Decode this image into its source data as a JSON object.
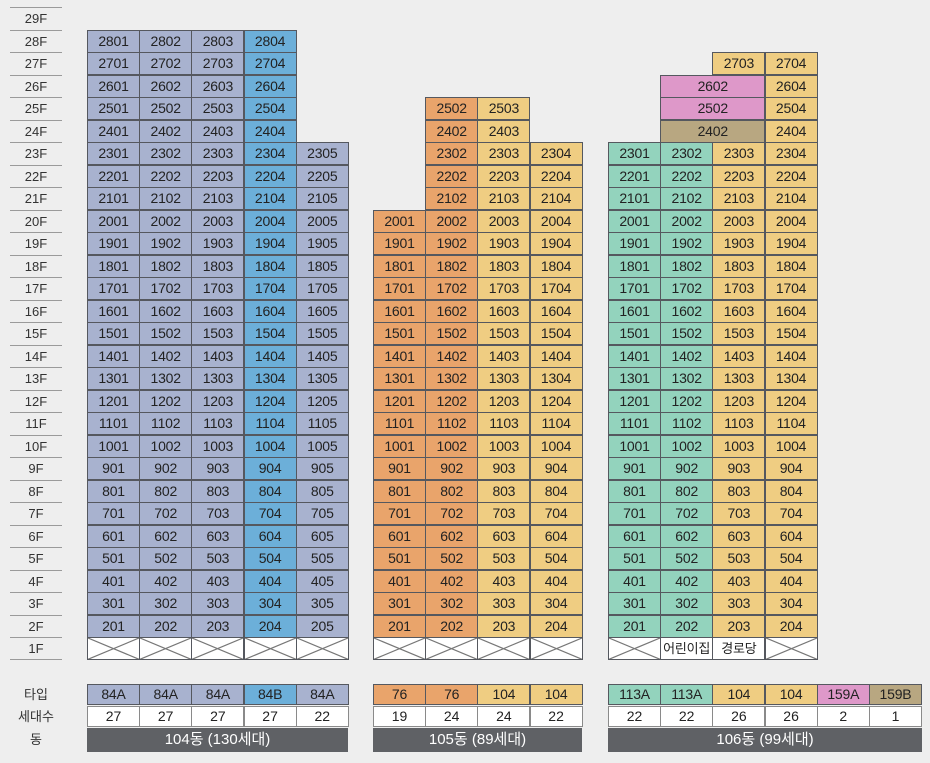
{
  "floors": [
    "29F",
    "28F",
    "27F",
    "26F",
    "25F",
    "24F",
    "23F",
    "22F",
    "21F",
    "20F",
    "19F",
    "18F",
    "17F",
    "16F",
    "15F",
    "14F",
    "13F",
    "12F",
    "11F",
    "10F",
    "9F",
    "8F",
    "7F",
    "6F",
    "5F",
    "4F",
    "3F",
    "2F",
    "1F"
  ],
  "row_labels": {
    "type": "타입",
    "households": "세대수",
    "building": "동"
  },
  "buildings": [
    {
      "name": "104동 (130세대)",
      "columns": [
        {
          "line": "01",
          "top": 28,
          "type": "84A",
          "households": "27",
          "color": "#a8b2cf",
          "first_floor": "x"
        },
        {
          "line": "02",
          "top": 28,
          "type": "84A",
          "households": "27",
          "color": "#a8b2cf",
          "first_floor": "x"
        },
        {
          "line": "03",
          "top": 28,
          "type": "84A",
          "households": "27",
          "color": "#a8b2cf",
          "first_floor": "x"
        },
        {
          "line": "04",
          "top": 28,
          "type": "84B",
          "households": "27",
          "color": "#6cafd9",
          "first_floor": "x"
        },
        {
          "line": "05",
          "top": 23,
          "type": "84A",
          "households": "22",
          "color": "#a8b2cf",
          "first_floor": "x"
        }
      ]
    },
    {
      "name": "105동 (89세대)",
      "columns": [
        {
          "line": "01",
          "top": 20,
          "type": "76",
          "households": "19",
          "color": "#e9a46b",
          "first_floor": "x"
        },
        {
          "line": "02",
          "top": 25,
          "type": "76",
          "households": "24",
          "color": "#e9a46b",
          "first_floor": "x"
        },
        {
          "line": "03",
          "top": 25,
          "type": "104",
          "households": "24",
          "color": "#efcd82",
          "first_floor": "x"
        },
        {
          "line": "04",
          "top": 23,
          "type": "104",
          "households": "22",
          "color": "#efcd82",
          "first_floor": "x"
        }
      ]
    },
    {
      "name": "106동 (99세대)",
      "columns": [
        {
          "line": "01",
          "top": 23,
          "type": "113A",
          "households": "22",
          "color": "#93d3bd",
          "first_floor": "x"
        },
        {
          "line": "02",
          "top": 23,
          "type": "113A",
          "households": "22",
          "color": "#93d3bd",
          "first_floor": "어린이집"
        },
        {
          "line": "03",
          "top": 27,
          "type": "104",
          "households": "26",
          "color": "#efcd82",
          "first_floor": "경로당"
        },
        {
          "line": "04",
          "top": 27,
          "type": "104",
          "households": "26",
          "color": "#efcd82",
          "first_floor": "x"
        }
      ],
      "extra_units": [
        {
          "label": "2602",
          "column": 2,
          "floor": 26,
          "color": "#de98c9"
        },
        {
          "label": "2502",
          "column": 2,
          "floor": 25,
          "color": "#de98c9"
        },
        {
          "label": "2402",
          "column": 2,
          "floor": 24,
          "color": "#b8a781"
        }
      ],
      "extra_types": [
        {
          "type": "159A",
          "households": "2",
          "color": "#de98c9"
        },
        {
          "type": "159B",
          "households": "1",
          "color": "#b8a781"
        }
      ]
    }
  ]
}
